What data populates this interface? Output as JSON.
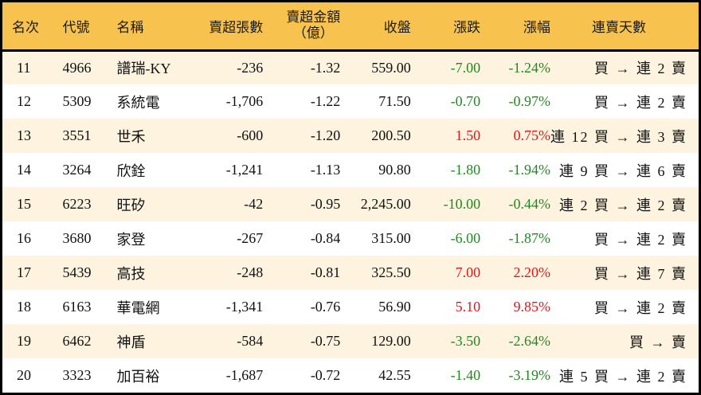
{
  "colors": {
    "header_bg": "#f8c24f",
    "row_odd_bg": "#fdf3df",
    "row_even_bg": "#ffffff",
    "up": "#e8141b",
    "down": "#1f8a1f",
    "border": "#000000"
  },
  "header": {
    "rank": "名次",
    "code": "代號",
    "name": "名稱",
    "net_sell_volume": "賣超張數",
    "net_sell_amount_line1": "賣超金額",
    "net_sell_amount_line2": "（億）",
    "close": "收盤",
    "change": "漲跌",
    "change_pct": "漲幅",
    "streak": "連賣天數"
  },
  "rows": [
    {
      "rank": "11",
      "code": "4966",
      "name": "譜瑞-KY",
      "volume": "-236",
      "amount": "-1.32",
      "close": "559.00",
      "change": "-7.00",
      "pct": "-1.24%",
      "dir": "down",
      "streak": "買 → 連 2 賣"
    },
    {
      "rank": "12",
      "code": "5309",
      "name": "系統電",
      "volume": "-1,706",
      "amount": "-1.22",
      "close": "71.50",
      "change": "-0.70",
      "pct": "-0.97%",
      "dir": "down",
      "streak": "買 → 連 2 賣"
    },
    {
      "rank": "13",
      "code": "3551",
      "name": "世禾",
      "volume": "-600",
      "amount": "-1.20",
      "close": "200.50",
      "change": "1.50",
      "pct": "0.75%",
      "dir": "up",
      "streak": "連 12 買 → 連 3 賣"
    },
    {
      "rank": "14",
      "code": "3264",
      "name": "欣銓",
      "volume": "-1,241",
      "amount": "-1.13",
      "close": "90.80",
      "change": "-1.80",
      "pct": "-1.94%",
      "dir": "down",
      "streak": "連 9 買 → 連 6 賣"
    },
    {
      "rank": "15",
      "code": "6223",
      "name": "旺矽",
      "volume": "-42",
      "amount": "-0.95",
      "close": "2,245.00",
      "change": "-10.00",
      "pct": "-0.44%",
      "dir": "down",
      "streak": "連 2 買 → 連 2 賣"
    },
    {
      "rank": "16",
      "code": "3680",
      "name": "家登",
      "volume": "-267",
      "amount": "-0.84",
      "close": "315.00",
      "change": "-6.00",
      "pct": "-1.87%",
      "dir": "down",
      "streak": "買 → 連 2 賣"
    },
    {
      "rank": "17",
      "code": "5439",
      "name": "高技",
      "volume": "-248",
      "amount": "-0.81",
      "close": "325.50",
      "change": "7.00",
      "pct": "2.20%",
      "dir": "up",
      "streak": "買 → 連 7 賣"
    },
    {
      "rank": "18",
      "code": "6163",
      "name": "華電網",
      "volume": "-1,341",
      "amount": "-0.76",
      "close": "56.90",
      "change": "5.10",
      "pct": "9.85%",
      "dir": "up",
      "streak": "買 → 連 2 賣"
    },
    {
      "rank": "19",
      "code": "6462",
      "name": "神盾",
      "volume": "-584",
      "amount": "-0.75",
      "close": "129.00",
      "change": "-3.50",
      "pct": "-2.64%",
      "dir": "down",
      "streak": "買 → 賣"
    },
    {
      "rank": "20",
      "code": "3323",
      "name": "加百裕",
      "volume": "-1,687",
      "amount": "-0.72",
      "close": "42.55",
      "change": "-1.40",
      "pct": "-3.19%",
      "dir": "down",
      "streak": "連 5 買 → 連 2 賣"
    }
  ]
}
